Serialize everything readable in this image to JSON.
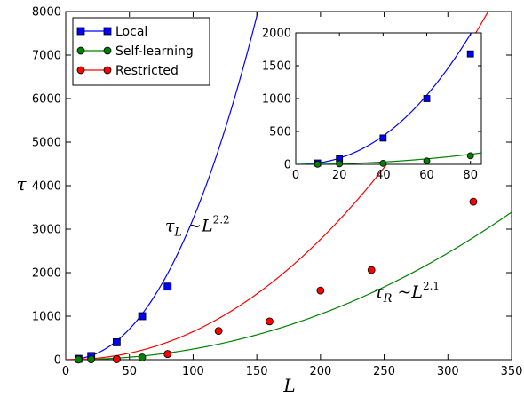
{
  "chart_data": [
    {
      "type": "line",
      "role": "main",
      "xlabel": "L",
      "ylabel": "τ",
      "xlim": [
        0,
        350
      ],
      "ylim": [
        0,
        8000
      ],
      "xticks": [
        0,
        50,
        100,
        150,
        200,
        250,
        300,
        350
      ],
      "yticks": [
        0,
        1000,
        2000,
        3000,
        4000,
        5000,
        6000,
        7000,
        8000
      ],
      "grid": false,
      "legend_position": "top-left",
      "series": [
        {
          "name": "Local",
          "color": "#0000ff",
          "marker": "square",
          "x": [
            10,
            20,
            40,
            60,
            80
          ],
          "y": [
            20,
            85,
            400,
            1000,
            1680
          ]
        },
        {
          "name": "Self-learning",
          "color": "#008000",
          "marker": "circle",
          "x": [
            10,
            20,
            40,
            60,
            80
          ],
          "y": [
            2,
            8,
            15,
            50,
            130
          ]
        },
        {
          "name": "Restricted",
          "color": "#ff0000",
          "marker": "circle",
          "x": [
            40,
            80,
            120,
            160,
            200,
            240,
            320
          ],
          "y": [
            10,
            130,
            660,
            880,
            1590,
            2060,
            3630
          ]
        }
      ],
      "fits": [
        {
          "series": "Local",
          "color": "#0000ff",
          "coef": 0.1288,
          "exponent": 2.2
        },
        {
          "series": "Self-learning",
          "color": "#008000",
          "coef": 0.0154,
          "exponent": 2.1
        },
        {
          "series": "Restricted",
          "color": "#ff0000",
          "coef": 0.0407,
          "exponent": 2.1
        }
      ],
      "annotations": [
        {
          "base": "τ",
          "sub": "L",
          "rel": " ~L",
          "sup": "2.2",
          "at": [
            78,
            2950
          ]
        },
        {
          "base": "τ",
          "sub": "R",
          "rel": " ~L",
          "sup": "2.1",
          "at": [
            242,
            1430
          ]
        }
      ]
    },
    {
      "type": "line",
      "role": "inset",
      "xlim": [
        0,
        85
      ],
      "ylim": [
        0,
        2000
      ],
      "xticks": [
        0,
        20,
        40,
        60,
        80
      ],
      "yticks": [
        0,
        500,
        1000,
        1500,
        2000
      ],
      "series": [
        {
          "name": "Local",
          "color": "#0000ff",
          "marker": "square",
          "x": [
            10,
            20,
            40,
            60,
            80
          ],
          "y": [
            20,
            85,
            400,
            1000,
            1680
          ]
        },
        {
          "name": "Self-learning",
          "color": "#008000",
          "marker": "circle",
          "x": [
            10,
            20,
            40,
            60,
            80
          ],
          "y": [
            2,
            8,
            15,
            50,
            130
          ]
        }
      ],
      "fits": [
        {
          "series": "Local",
          "color": "#0000ff",
          "coef": 0.1288,
          "exponent": 2.2
        },
        {
          "series": "Self-learning",
          "color": "#008000",
          "coef": 0.0154,
          "exponent": 2.1
        }
      ]
    }
  ]
}
